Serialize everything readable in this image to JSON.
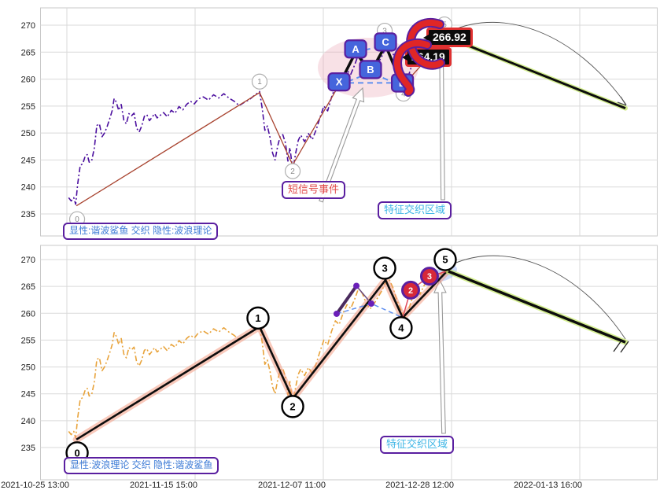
{
  "axes": {
    "x_tick_labels": [
      "2021-10-25 13:00",
      "2021-11-15 15:00",
      "2021-12-07 11:00",
      "2021-12-28 12:00",
      "2022-01-13 16:00"
    ],
    "y_tick_labels": [
      "270",
      "265",
      "260",
      "255",
      "250",
      "245",
      "240",
      "235"
    ]
  },
  "panel_top": {
    "legend": "显性:谐波鲨鱼 交织 隐性:波浪理论",
    "short_signal_label": "短信号事件",
    "interweave_label": "特征交织区域"
  },
  "panel_bottom": {
    "legend": "显性:波浪理论 交织 隐性:谐波鲨鱼",
    "interweave_label": "特征交织区域"
  },
  "chart_data": {
    "type": "line",
    "panels": 2,
    "x_ticks": [
      "2021-10-25 13:00",
      "2021-11-15 15:00",
      "2021-12-07 11:00",
      "2021-12-28 12:00",
      "2022-01-13 16:00"
    ],
    "y_ticks": [
      270,
      265,
      260,
      255,
      250,
      245,
      240,
      235
    ],
    "y_range": [
      231.8,
      273.2
    ],
    "price_series": {
      "name": "price",
      "points": [
        [
          0.014,
          238.0
        ],
        [
          0.034,
          237.4
        ],
        [
          0.054,
          238.0
        ],
        [
          0.069,
          236.8
        ],
        [
          0.084,
          240.5
        ],
        [
          0.104,
          244.0
        ],
        [
          0.124,
          244.3
        ],
        [
          0.144,
          245.8
        ],
        [
          0.159,
          246.0
        ],
        [
          0.174,
          244.6
        ],
        [
          0.194,
          244.9
        ],
        [
          0.214,
          247.2
        ],
        [
          0.234,
          251.4
        ],
        [
          0.254,
          251.7
        ],
        [
          0.274,
          249.3
        ],
        [
          0.294,
          250.0
        ],
        [
          0.314,
          251.2
        ],
        [
          0.334,
          252.6
        ],
        [
          0.354,
          254.2
        ],
        [
          0.369,
          256.4
        ],
        [
          0.384,
          255.8
        ],
        [
          0.404,
          254.2
        ],
        [
          0.424,
          255.3
        ],
        [
          0.444,
          252.4
        ],
        [
          0.464,
          251.7
        ],
        [
          0.484,
          253.6
        ],
        [
          0.504,
          253.2
        ],
        [
          0.524,
          253.7
        ],
        [
          0.544,
          250.9
        ],
        [
          0.564,
          250.2
        ],
        [
          0.584,
          251.3
        ],
        [
          0.604,
          253.1
        ],
        [
          0.624,
          253.4
        ],
        [
          0.644,
          252.3
        ],
        [
          0.664,
          252.9
        ],
        [
          0.684,
          253.6
        ],
        [
          0.704,
          252.8
        ],
        [
          0.724,
          253.2
        ],
        [
          0.754,
          253.8
        ],
        [
          0.784,
          253.0
        ],
        [
          0.814,
          254.2
        ],
        [
          0.844,
          253.7
        ],
        [
          0.874,
          254.9
        ],
        [
          0.904,
          254.3
        ],
        [
          0.934,
          255.3
        ],
        [
          0.964,
          255.9
        ],
        [
          0.994,
          255.4
        ],
        [
          1.024,
          256.3
        ],
        [
          1.064,
          256.7
        ],
        [
          1.104,
          256.1
        ],
        [
          1.144,
          257.1
        ],
        [
          1.184,
          256.5
        ],
        [
          1.224,
          257.3
        ],
        [
          1.264,
          256.5
        ],
        [
          1.304,
          255.9
        ],
        [
          1.344,
          255.1
        ],
        [
          1.384,
          255.7
        ],
        [
          1.424,
          256.2
        ],
        [
          1.464,
          257.0
        ],
        [
          1.503,
          257.7
        ],
        [
          1.524,
          254.5
        ],
        [
          1.544,
          250.5
        ],
        [
          1.564,
          251.3
        ],
        [
          1.584,
          249.2
        ],
        [
          1.604,
          246.3
        ],
        [
          1.624,
          245.0
        ],
        [
          1.644,
          247.6
        ],
        [
          1.664,
          249.4
        ],
        [
          1.684,
          249.7
        ],
        [
          1.704,
          248.2
        ],
        [
          1.724,
          244.8
        ],
        [
          1.739,
          247.3
        ],
        [
          1.754,
          244.6
        ],
        [
          1.769,
          244.1
        ],
        [
          1.784,
          246.2
        ],
        [
          1.804,
          248.6
        ],
        [
          1.824,
          249.6
        ],
        [
          1.854,
          248.4
        ],
        [
          1.884,
          249.9
        ],
        [
          1.914,
          248.8
        ],
        [
          1.944,
          250.6
        ],
        [
          1.974,
          252.9
        ],
        [
          2.004,
          255.0
        ],
        [
          2.034,
          254.1
        ],
        [
          2.064,
          256.6
        ],
        [
          2.094,
          258.6
        ],
        [
          2.124,
          257.9
        ],
        [
          2.154,
          260.0
        ],
        [
          2.184,
          261.6
        ],
        [
          2.214,
          260.9
        ],
        [
          2.244,
          262.6
        ],
        [
          2.274,
          264.6
        ],
        [
          2.304,
          263.7
        ],
        [
          2.334,
          261.9
        ],
        [
          2.364,
          260.8
        ],
        [
          2.394,
          261.7
        ],
        [
          2.424,
          262.9
        ],
        [
          2.454,
          264.1
        ],
        [
          2.484,
          265.6
        ],
        [
          2.514,
          266.3
        ],
        [
          2.544,
          264.7
        ],
        [
          2.574,
          262.4
        ],
        [
          2.604,
          260.7
        ],
        [
          2.634,
          259.2
        ],
        [
          2.664,
          260.6
        ],
        [
          2.694,
          262.8
        ],
        [
          2.724,
          264.4
        ],
        [
          2.754,
          263.5
        ],
        [
          2.784,
          265.1
        ],
        [
          2.814,
          266.1
        ],
        [
          2.844,
          266.9
        ],
        [
          2.874,
          266.4
        ],
        [
          2.904,
          267.4
        ],
        [
          2.934,
          267.1
        ],
        [
          2.964,
          267.6
        ]
      ]
    },
    "wave": {
      "labels": [
        "0",
        "1",
        "2",
        "3",
        "4",
        "5"
      ],
      "points": [
        [
          0.074,
          236.5
        ],
        [
          1.503,
          257.5
        ],
        [
          1.761,
          244.1
        ],
        [
          2.485,
          266.2
        ],
        [
          2.619,
          259.2
        ],
        [
          2.963,
          267.8
        ]
      ]
    },
    "harmonic": {
      "labels": [
        "X",
        "A",
        "B",
        "C",
        "D"
      ],
      "points": [
        [
          2.123,
          258.9
        ],
        [
          2.252,
          265.0
        ],
        [
          2.368,
          261.2
        ],
        [
          2.485,
          266.3
        ],
        [
          2.617,
          258.7
        ]
      ]
    },
    "harmonic_implicit": {
      "points": [
        [
          2.104,
          259.9
        ],
        [
          2.258,
          265.1
        ],
        [
          2.374,
          261.8
        ]
      ]
    },
    "events": [
      {
        "label": "2",
        "price_text": "264.19",
        "point": [
          2.681,
          264.3
        ]
      },
      {
        "label": "3",
        "price_text": "266.92",
        "point": [
          2.828,
          266.9
        ]
      }
    ],
    "forecast": {
      "from": [
        2.963,
        267.8
      ],
      "to": [
        4.356,
        254.6
      ]
    },
    "colors": {
      "price_top": "#4A0D9E",
      "price_bottom": "#E8A33B",
      "wave_thin_red": "#A8432F",
      "pattern_black": "#0d0d0d",
      "dashed_blue": "#5f8ff0",
      "glow_salmon": "rgba(243,148,120,0.5)",
      "glow_green": "rgba(198,232,107,0.75)",
      "event_red": "#D62839",
      "ring_purple": "#5A1FA0",
      "label_box_blue": "#4565DC",
      "curl_red": "#E02626"
    }
  }
}
